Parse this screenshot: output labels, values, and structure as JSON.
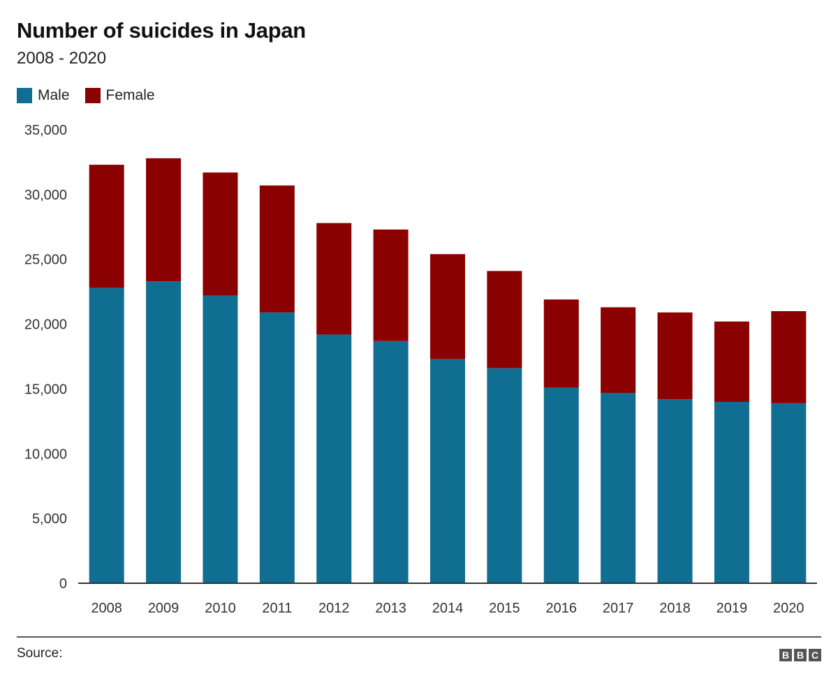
{
  "header": {
    "title": "Number of suicides in Japan",
    "subtitle": "2008 - 2020"
  },
  "legend": [
    {
      "label": "Male",
      "color": "#0f6e91"
    },
    {
      "label": "Female",
      "color": "#8b0000"
    }
  ],
  "footer": {
    "source_label": "Source:",
    "logo_letters": [
      "B",
      "B",
      "C"
    ]
  },
  "chart_data": {
    "type": "bar",
    "stacked": true,
    "title": "Number of suicides in Japan",
    "subtitle": "2008 - 2020",
    "categories": [
      "2008",
      "2009",
      "2010",
      "2011",
      "2012",
      "2013",
      "2014",
      "2015",
      "2016",
      "2017",
      "2018",
      "2019",
      "2020"
    ],
    "series": [
      {
        "name": "Male",
        "color": "#0f6e91",
        "values": [
          22800,
          23300,
          22200,
          20900,
          19200,
          18700,
          17300,
          16600,
          15100,
          14700,
          14200,
          14000,
          13900
        ]
      },
      {
        "name": "Female",
        "color": "#8b0000",
        "values": [
          9500,
          9500,
          9500,
          9800,
          8600,
          8600,
          8100,
          7500,
          6800,
          6600,
          6700,
          6200,
          7100
        ]
      }
    ],
    "yticks": [
      "0",
      "5,000",
      "10,000",
      "15,000",
      "20,000",
      "25,000",
      "30,000",
      "35,000"
    ],
    "ylim": [
      0,
      35000
    ],
    "xlabel": "",
    "ylabel": "",
    "grid": false
  }
}
